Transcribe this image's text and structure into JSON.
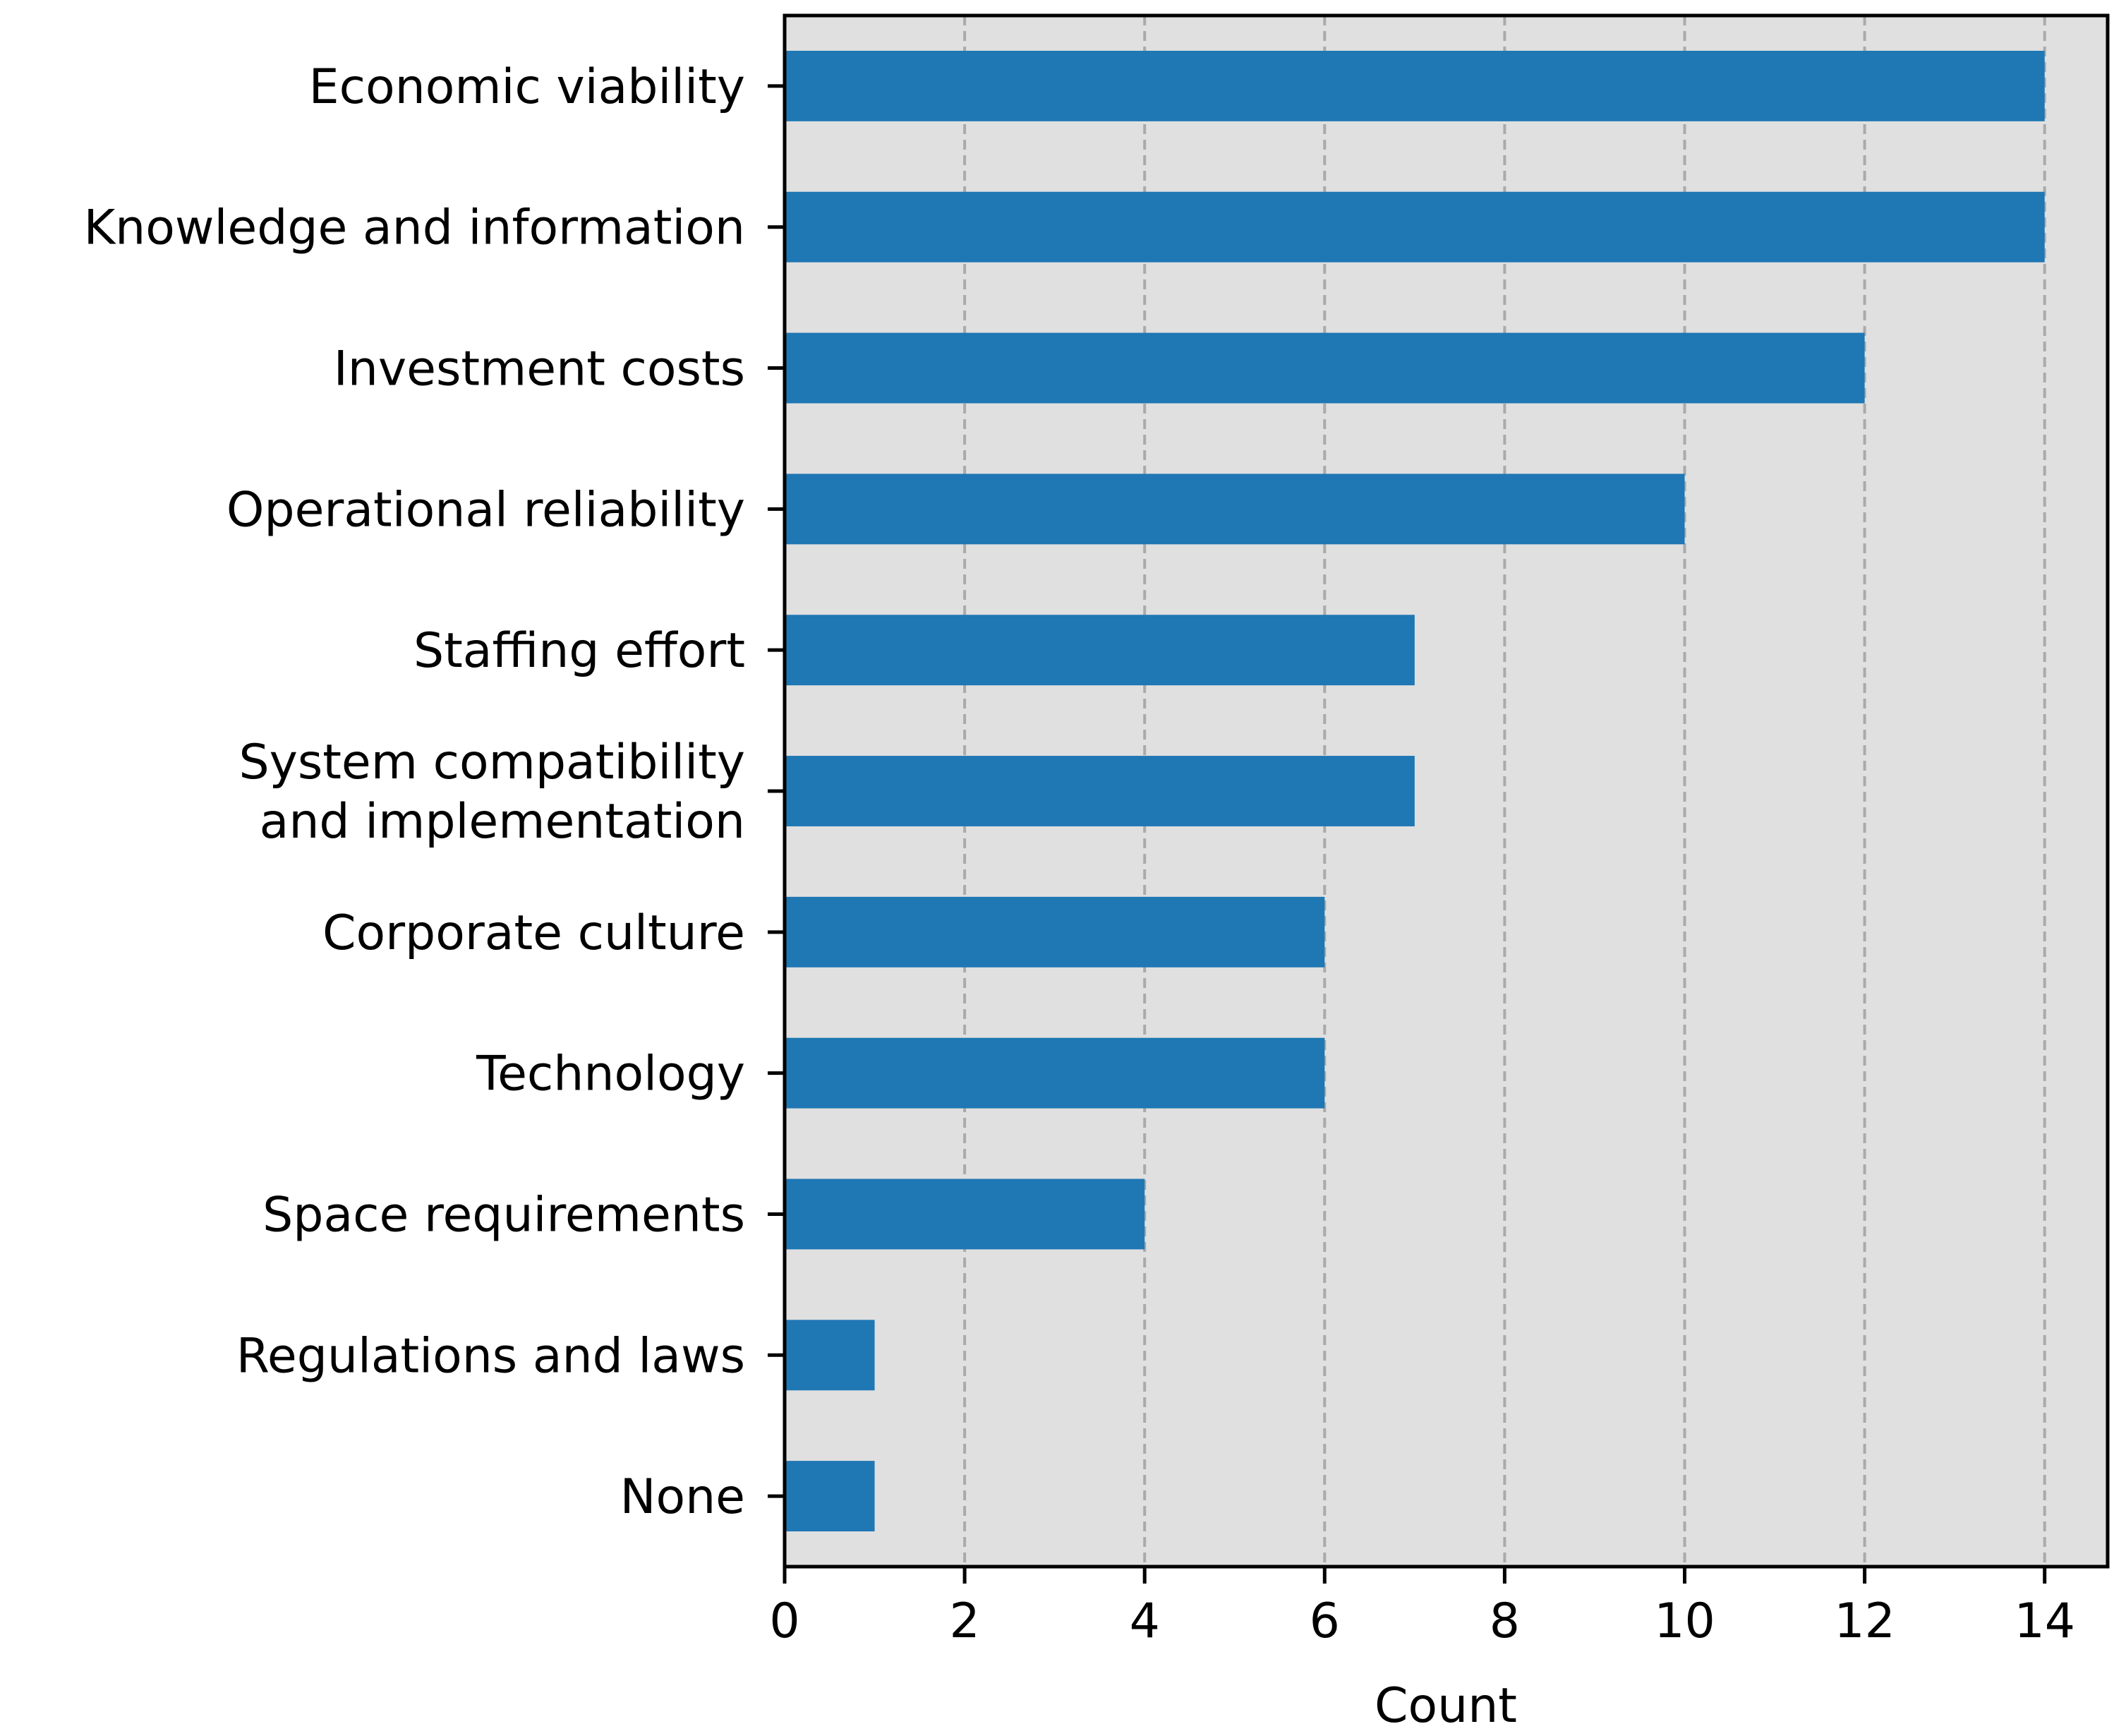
{
  "chart_data": {
    "type": "bar",
    "orientation": "horizontal",
    "title": "",
    "xlabel": "Count",
    "ylabel": "",
    "xlim": [
      0,
      14.7
    ],
    "xticks": [
      0,
      2,
      4,
      6,
      8,
      10,
      12,
      14
    ],
    "grid": "x-dashed",
    "categories": [
      [
        "Economic viability"
      ],
      [
        "Knowledge and information"
      ],
      [
        "Investment costs"
      ],
      [
        "Operational reliability"
      ],
      [
        "Staffing effort"
      ],
      [
        "System compatibility",
        "and implementation"
      ],
      [
        "Corporate culture"
      ],
      [
        "Technology"
      ],
      [
        "Space requirements"
      ],
      [
        "Regulations and laws"
      ],
      [
        "None"
      ]
    ],
    "values": [
      14,
      14,
      12,
      10,
      7,
      7,
      6,
      6,
      4,
      1,
      1
    ],
    "colors": {
      "bar": "#1f77b4",
      "plot_background": "#e0e0e0",
      "grid": "#aaaaaa",
      "axis": "#000000"
    }
  }
}
